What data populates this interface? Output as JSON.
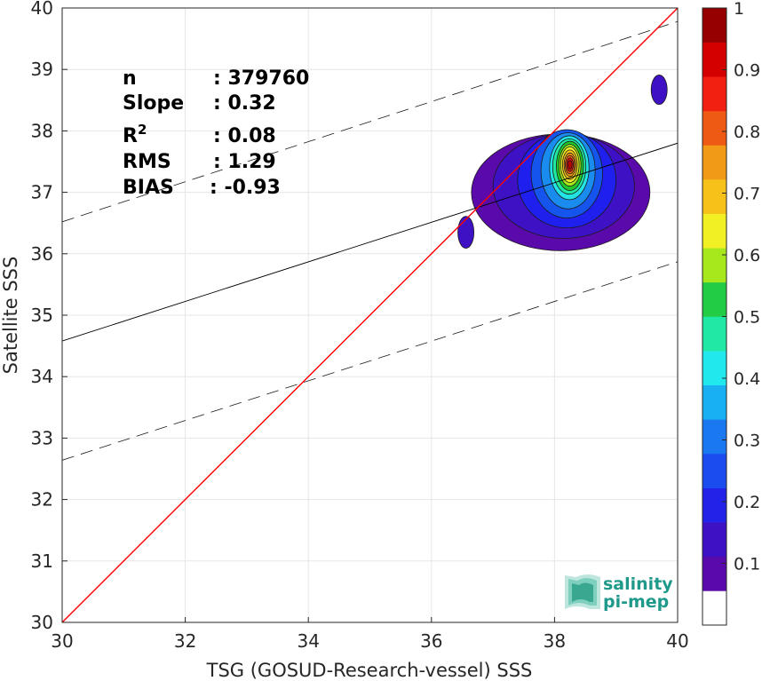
{
  "chart_data": {
    "type": "contour-scatter",
    "xlabel": "TSG (GOSUD-Research-vessel) SSS",
    "ylabel": "Satellite SSS",
    "xlim": [
      30,
      40
    ],
    "ylim": [
      30,
      40
    ],
    "xticks": [
      30,
      32,
      34,
      36,
      38,
      40
    ],
    "yticks": [
      30,
      31,
      32,
      33,
      34,
      35,
      36,
      37,
      38,
      39,
      40
    ],
    "grid": true,
    "stats": [
      {
        "key": "n",
        "label": "n",
        "sep": ":",
        "value": "379760"
      },
      {
        "key": "slope",
        "label": "Slope",
        "sep": ":",
        "value": "0.32"
      },
      {
        "key": "r2",
        "label": "R",
        "sup": "2",
        "sep": ":",
        "value": "0.08"
      },
      {
        "key": "rms",
        "label": "RMS",
        "sep": ":",
        "value": "1.29"
      },
      {
        "key": "bias",
        "label": "BIAS",
        "sep": ":",
        "value": "-0.93"
      }
    ],
    "lines": {
      "identity": {
        "points": [
          [
            30,
            30
          ],
          [
            40,
            40
          ]
        ],
        "color": "#ff0000"
      },
      "fit": {
        "points": [
          [
            30,
            34.58
          ],
          [
            40,
            37.8
          ]
        ],
        "color": "#000000"
      },
      "upper_bound": {
        "points": [
          [
            30,
            36.52
          ],
          [
            40,
            39.78
          ]
        ],
        "style": "dashed"
      },
      "lower_bound": {
        "points": [
          [
            30,
            32.64
          ],
          [
            40,
            35.87
          ]
        ],
        "style": "dashed"
      }
    },
    "density_levels": [
      {
        "level": 0.05,
        "color": "#5a0aaa",
        "cx": 38.1,
        "cy": 37.0,
        "rx": 1.45,
        "ry": 0.95
      },
      {
        "level": 0.1,
        "color": "#3e12c4",
        "cx": 38.15,
        "cy": 37.1,
        "rx": 1.15,
        "ry": 0.85
      },
      {
        "level": 0.15,
        "color": "#2020ee",
        "cx": 38.2,
        "cy": 37.2,
        "rx": 0.8,
        "ry": 0.78
      },
      {
        "level": 0.2,
        "color": "#1555ee",
        "cx": 38.2,
        "cy": 37.3,
        "rx": 0.58,
        "ry": 0.72
      },
      {
        "level": 0.25,
        "color": "#1a8cf0",
        "cx": 38.22,
        "cy": 37.35,
        "rx": 0.44,
        "ry": 0.62
      },
      {
        "level": 0.35,
        "color": "#22e4e4",
        "cx": 38.24,
        "cy": 37.4,
        "rx": 0.32,
        "ry": 0.52
      },
      {
        "level": 0.45,
        "color": "#20e8a0",
        "cx": 38.24,
        "cy": 37.42,
        "rx": 0.27,
        "ry": 0.45
      },
      {
        "level": 0.5,
        "color": "#22c82a",
        "cx": 38.25,
        "cy": 37.43,
        "rx": 0.22,
        "ry": 0.4
      },
      {
        "level": 0.55,
        "color": "#a6e81c",
        "cx": 38.25,
        "cy": 37.44,
        "rx": 0.18,
        "ry": 0.34
      },
      {
        "level": 0.6,
        "color": "#f0f024",
        "cx": 38.25,
        "cy": 37.45,
        "rx": 0.15,
        "ry": 0.29
      },
      {
        "level": 0.7,
        "color": "#f6c21a",
        "cx": 38.25,
        "cy": 37.45,
        "rx": 0.12,
        "ry": 0.24
      },
      {
        "level": 0.75,
        "color": "#f09a18",
        "cx": 38.25,
        "cy": 37.45,
        "rx": 0.095,
        "ry": 0.19
      },
      {
        "level": 0.8,
        "color": "#ee5a14",
        "cx": 38.25,
        "cy": 37.45,
        "rx": 0.075,
        "ry": 0.15
      },
      {
        "level": 0.9,
        "color": "#e01010",
        "cx": 38.25,
        "cy": 37.45,
        "rx": 0.055,
        "ry": 0.11
      },
      {
        "level": 0.95,
        "color": "#b80000",
        "cx": 38.25,
        "cy": 37.45,
        "rx": 0.035,
        "ry": 0.07
      }
    ],
    "islands": [
      {
        "cx": 36.56,
        "cy": 36.35,
        "rx": 0.13,
        "ry": 0.26,
        "color": "#3e12c4"
      },
      {
        "cx": 39.7,
        "cy": 38.67,
        "rx": 0.13,
        "ry": 0.24,
        "color": "#3e12c4"
      }
    ],
    "colorbar": {
      "colors": [
        "#ffffff",
        "#5a0aaa",
        "#3e12c4",
        "#2222e8",
        "#1a4cf0",
        "#1a78f0",
        "#18b0f0",
        "#20e8ec",
        "#22e8a6",
        "#22cc44",
        "#a6e81c",
        "#f0f024",
        "#f6c21a",
        "#f09a18",
        "#ee5a14",
        "#f22010",
        "#d40000",
        "#960000"
      ],
      "ticks": [
        "0.1",
        "0.2",
        "0.3",
        "0.4",
        "0.5",
        "0.6",
        "0.7",
        "0.8",
        "0.9",
        "1"
      ],
      "tick_values": [
        0.1,
        0.2,
        0.3,
        0.4,
        0.5,
        0.6,
        0.7,
        0.8,
        0.9,
        1.0
      ],
      "range": [
        0,
        1
      ]
    },
    "logo": {
      "line1": "salinity",
      "line2": "pi-mep",
      "color": "#1f9a8a"
    }
  }
}
